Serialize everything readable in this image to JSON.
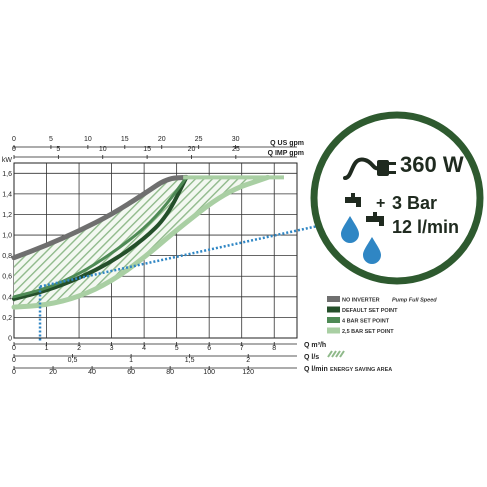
{
  "chart_data": {
    "type": "area",
    "kw_axis": {
      "label": "kW",
      "ticks": [
        "0",
        "0,2",
        "0,4",
        "0,6",
        "0,8",
        "1,0",
        "1,2",
        "1,4",
        "1,6"
      ],
      "ylim": [
        0,
        1.7
      ]
    },
    "x_axes": [
      {
        "label": "Q US gpm",
        "ticks": [
          "0",
          "5",
          "10",
          "15",
          "20",
          "25",
          "30"
        ]
      },
      {
        "label": "Q IMP gpm",
        "ticks": [
          "0",
          "5",
          "10",
          "15",
          "20",
          "25"
        ]
      },
      {
        "label": "Q m³/h",
        "ticks": [
          "0",
          "1",
          "2",
          "3",
          "4",
          "5",
          "6",
          "7",
          "8"
        ]
      },
      {
        "label": "Q l/s",
        "ticks": [
          "0",
          "0,5",
          "1",
          "1,5",
          "2"
        ]
      },
      {
        "label": "Q l/min",
        "ticks": [
          "0",
          "20",
          "40",
          "60",
          "80",
          "100",
          "120"
        ]
      }
    ],
    "xlim_m3h": [
      0,
      8.7
    ],
    "series": [
      {
        "name": "NO INVERTER",
        "color": "#6f6f6f",
        "x": [
          0,
          1,
          2,
          3,
          4,
          4.7,
          5.3
        ],
        "y": [
          0.78,
          0.9,
          1.04,
          1.2,
          1.4,
          1.55,
          1.56
        ]
      },
      {
        "name": "DEFAULT SET POINT",
        "color": "#244f2a",
        "x": [
          0,
          1,
          2,
          3,
          4,
          4.7,
          5.3
        ],
        "y": [
          0.38,
          0.46,
          0.58,
          0.74,
          0.96,
          1.18,
          1.56
        ]
      },
      {
        "name": "4 BAR SET POINT",
        "color": "#4e8a55",
        "x": [
          0,
          1,
          2,
          3,
          4,
          4.7,
          5.3
        ],
        "y": [
          0.4,
          0.48,
          0.62,
          0.82,
          1.06,
          1.3,
          1.56
        ]
      },
      {
        "name": "2,5 BAR SET POINT",
        "color": "#a9cfa3",
        "x": [
          0,
          1,
          2,
          3,
          4,
          5,
          6.5,
          7.8
        ],
        "y": [
          0.3,
          0.32,
          0.4,
          0.55,
          0.78,
          1.05,
          1.42,
          1.56
        ]
      }
    ],
    "energy_saving_area": {
      "label": "ENERGY SAVING AREA"
    },
    "operating_point": {
      "x": 0.8,
      "y": 0.5,
      "target": [
        7.8,
        1.0
      ]
    },
    "legend_note": "Pump Full Speed"
  },
  "badge": {
    "power": "360 W",
    "pressure_sign": "+",
    "pressure": "3 Bar",
    "flow": "12 l/min"
  },
  "colors": {
    "dark_green": "#244f2a",
    "mid_green": "#4e8a55",
    "light_green": "#a9cfa3",
    "gray": "#6f6f6f",
    "water": "#2f86c4"
  },
  "icons": [
    "power-plug-icon",
    "faucet-icon",
    "water-drop-icon"
  ]
}
